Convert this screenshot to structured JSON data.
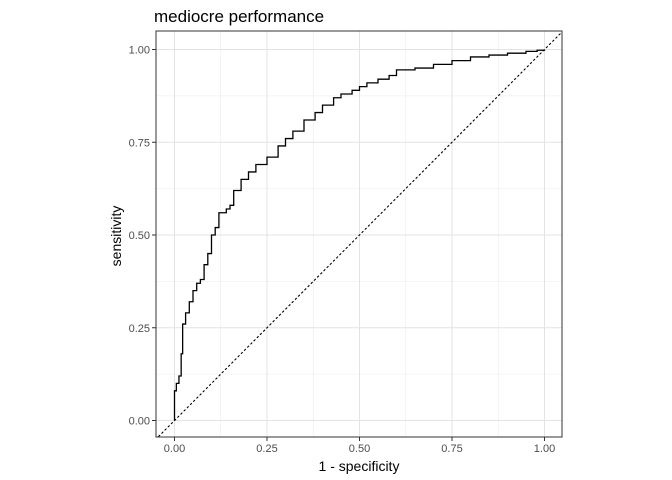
{
  "chart_data": {
    "type": "line",
    "title": "mediocre performance",
    "xlabel": "1 - specificity",
    "ylabel": "sensitivity",
    "xlim": [
      0,
      1
    ],
    "ylim": [
      0,
      1
    ],
    "grid": true,
    "x_ticks": [
      "0.00",
      "0.25",
      "0.50",
      "0.75",
      "1.00"
    ],
    "y_ticks": [
      "0.00",
      "0.25",
      "0.50",
      "0.75",
      "1.00"
    ],
    "reference_line": {
      "style": "dotted",
      "from": [
        0,
        0
      ],
      "to": [
        1,
        1
      ]
    },
    "series": [
      {
        "style": "step",
        "color": "#000000",
        "points": [
          [
            0.0,
            0.0
          ],
          [
            0.0,
            0.08
          ],
          [
            0.005,
            0.1
          ],
          [
            0.012,
            0.12
          ],
          [
            0.018,
            0.18
          ],
          [
            0.022,
            0.26
          ],
          [
            0.03,
            0.29
          ],
          [
            0.04,
            0.32
          ],
          [
            0.05,
            0.35
          ],
          [
            0.06,
            0.37
          ],
          [
            0.07,
            0.38
          ],
          [
            0.08,
            0.42
          ],
          [
            0.09,
            0.45
          ],
          [
            0.1,
            0.5
          ],
          [
            0.11,
            0.52
          ],
          [
            0.12,
            0.56
          ],
          [
            0.14,
            0.57
          ],
          [
            0.15,
            0.58
          ],
          [
            0.16,
            0.62
          ],
          [
            0.18,
            0.65
          ],
          [
            0.2,
            0.67
          ],
          [
            0.22,
            0.69
          ],
          [
            0.25,
            0.71
          ],
          [
            0.28,
            0.74
          ],
          [
            0.3,
            0.76
          ],
          [
            0.32,
            0.78
          ],
          [
            0.35,
            0.81
          ],
          [
            0.38,
            0.83
          ],
          [
            0.4,
            0.85
          ],
          [
            0.43,
            0.87
          ],
          [
            0.45,
            0.88
          ],
          [
            0.48,
            0.89
          ],
          [
            0.5,
            0.9
          ],
          [
            0.52,
            0.91
          ],
          [
            0.55,
            0.92
          ],
          [
            0.58,
            0.93
          ],
          [
            0.6,
            0.945
          ],
          [
            0.65,
            0.95
          ],
          [
            0.7,
            0.96
          ],
          [
            0.75,
            0.97
          ],
          [
            0.8,
            0.98
          ],
          [
            0.85,
            0.985
          ],
          [
            0.9,
            0.99
          ],
          [
            0.95,
            0.995
          ],
          [
            0.98,
            0.998
          ],
          [
            1.0,
            1.0
          ]
        ]
      }
    ]
  }
}
